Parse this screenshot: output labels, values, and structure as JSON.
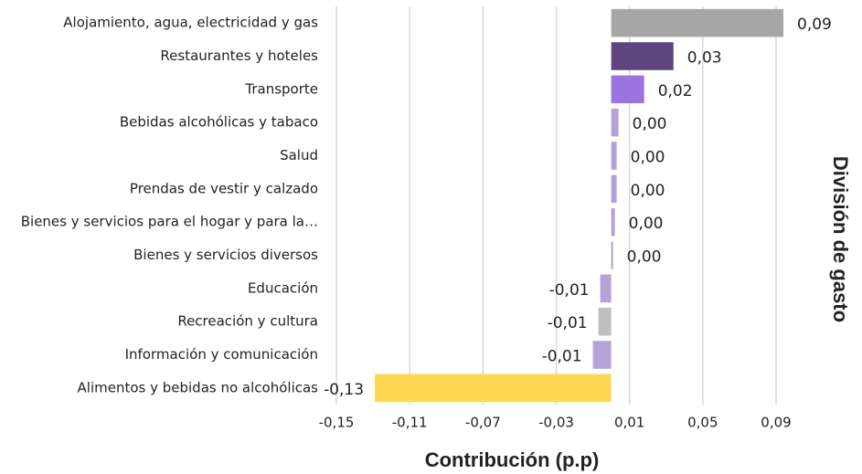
{
  "chart_data": {
    "type": "barh",
    "xlabel": "Contribución (p.p)",
    "ylabel": "División de gasto",
    "categories": [
      "Alojamiento, agua, electricidad y gas",
      "Restaurantes y hoteles",
      "Transporte",
      "Bebidas alcohólicas y tabaco",
      "Salud",
      "Prendas de vestir y calzado",
      "Bienes y servicios para el hogar y para la…",
      "Bienes y servicios diversos",
      "Educación",
      "Recreación y cultura",
      "Información y comunicación",
      "Alimentos y bebidas no alcohólicas"
    ],
    "values": [
      0.094,
      0.034,
      0.018,
      0.004,
      0.003,
      0.003,
      0.002,
      0.001,
      -0.006,
      -0.007,
      -0.01,
      -0.129
    ],
    "value_labels": [
      "0,09",
      "0,03",
      "0,02",
      "0,00",
      "0,00",
      "0,00",
      "0,00",
      "0,00",
      "-0,01",
      "-0,01",
      "-0,01",
      "-0,13"
    ],
    "colors": [
      "#a6a6a6",
      "#5e4580",
      "#9b74e0",
      "#b5a2d6",
      "#b5a2d6",
      "#b5a2d6",
      "#b5a2d6",
      "#b5a2d6",
      "#b5a2d6",
      "#bfbfbf",
      "#b5a2d6",
      "#ffd651"
    ],
    "xlim": [
      -0.15,
      0.09
    ],
    "xticks": [
      {
        "value": -0.15,
        "label": "-0,15"
      },
      {
        "value": -0.11,
        "label": "-0,11"
      },
      {
        "value": -0.07,
        "label": "-0,07"
      },
      {
        "value": -0.03,
        "label": "-0,03"
      },
      {
        "value": 0.01,
        "label": "0,01"
      },
      {
        "value": 0.05,
        "label": "0,05"
      },
      {
        "value": 0.09,
        "label": "0,09"
      }
    ],
    "grid": true
  }
}
